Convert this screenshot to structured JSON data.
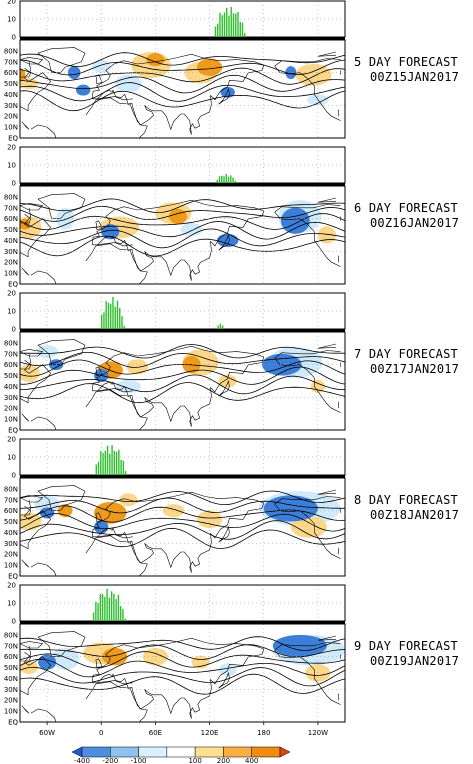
{
  "panels": [
    {
      "forecast_label": "5 DAY FORECAST",
      "valid_time": "00Z15JAN2017",
      "histogram": {
        "center_lon": 142,
        "half_width_deg": 18,
        "peak": 17
      }
    },
    {
      "forecast_label": "6 DAY FORECAST",
      "valid_time": "00Z16JAN2017",
      "histogram": {
        "center_lon": 138,
        "half_width_deg": 12,
        "peak": 5
      }
    },
    {
      "forecast_label": "7 DAY FORECAST",
      "valid_time": "00Z17JAN2017",
      "histogram": {
        "center_lon": 12,
        "half_width_deg": 14,
        "peak": 18,
        "secondary": {
          "center_lon": 132,
          "half_width_deg": 5,
          "peak": 3
        }
      }
    },
    {
      "forecast_label": "8 DAY FORECAST",
      "valid_time": "00Z18JAN2017",
      "histogram": {
        "center_lon": 10,
        "half_width_deg": 18,
        "peak": 17
      }
    },
    {
      "forecast_label": "9 DAY FORECAST",
      "valid_time": "00Z19JAN2017",
      "histogram": {
        "center_lon": 8,
        "half_width_deg": 19,
        "peak": 18
      }
    }
  ],
  "histogram_y_ticks": [
    "20",
    "10",
    "0"
  ],
  "map_lat_ticks": [
    "80N",
    "70N",
    "60N",
    "50N",
    "40N",
    "30N",
    "20N",
    "10N",
    "EQ"
  ],
  "map_lon_ticks": [
    "60W",
    "0",
    "60E",
    "120E",
    "180",
    "120W"
  ],
  "colorbar": {
    "labels": [
      "-400",
      "-200",
      "-100",
      "100",
      "200",
      "400"
    ],
    "colors": [
      "#1e5fc8",
      "#4a8fe0",
      "#8ec0f0",
      "#d8f0ff",
      "#ffffff",
      "#ffe090",
      "#f8b040",
      "#f08c10",
      "#e84010"
    ]
  },
  "anomaly_colors": {
    "strong_neg": "#3d7fd8",
    "weak_neg": "#cfeafb",
    "weak_pos": "#fbd78a",
    "strong_pos": "#f09a1c"
  },
  "histogram_color": "#2cc02c"
}
